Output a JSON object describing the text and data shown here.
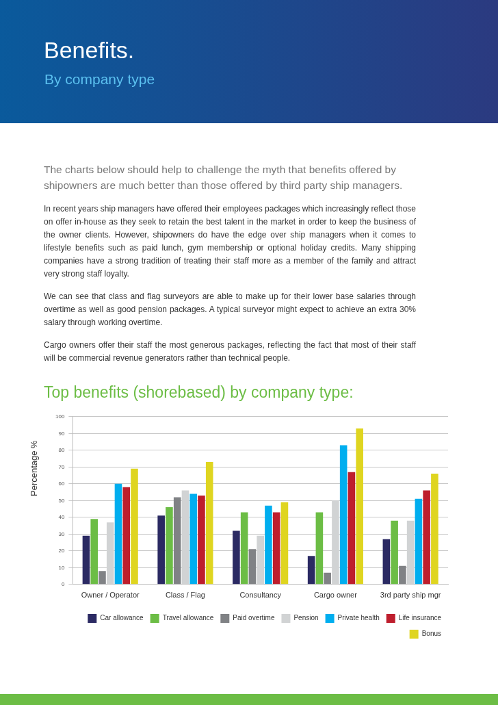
{
  "chart_data": {
    "type": "bar",
    "title": "Top benefits (shorebased) by company type:",
    "ylabel": "Percentage %",
    "annotations": [
      "Benefits.",
      "By company type",
      "The charts below should help to challenge the myth that benefits offered by shipowners are much better than those offered by third party ship managers.",
      "In recent years ship managers have offered their employees packages which increasingly reflect those on offer in-house as they seek to retain the best talent in the market in order to keep the business of the owner clients. However, shipowners do have the edge over ship managers when it comes to lifestyle benefits such as paid lunch, gym membership or optional holiday credits. Many shipping companies have a strong tradition of treating their staff more as a member of the family and attract very strong staff loyalty.",
      "We can see that class and flag surveyors are able to make up for their lower base salaries through overtime as well as good pension packages. A typical surveyor might expect to achieve an extra 30% salary through working overtime.",
      "Cargo owners offer their staff the most generous packages, reflecting the fact that most of their staff will be commercial revenue generators rather than technical people."
    ],
    "categories": [
      "Owner / Operator",
      "Class / Flag",
      "Consultancy",
      "Cargo owner",
      "3rd party ship mgr"
    ],
    "series": [
      {
        "name": "Car allowance",
        "color": "#2b2a63",
        "values": [
          29,
          41,
          32,
          17,
          27
        ]
      },
      {
        "name": "Travel allowance",
        "color": "#6cbd45",
        "values": [
          39,
          46,
          43,
          43,
          38
        ]
      },
      {
        "name": "Paid overtime",
        "color": "#808285",
        "values": [
          8,
          52,
          21,
          7,
          11
        ]
      },
      {
        "name": "Pension",
        "color": "#d1d3d4",
        "values": [
          37,
          56,
          29,
          50,
          38
        ]
      },
      {
        "name": "Private health",
        "color": "#00aeef",
        "values": [
          60,
          54,
          47,
          83,
          51
        ]
      },
      {
        "name": "Life insurance",
        "color": "#be1e2d",
        "values": [
          58,
          53,
          43,
          67,
          56
        ]
      },
      {
        "name": "Bonus",
        "color": "#dfd520",
        "values": [
          69,
          73,
          49,
          93,
          66
        ]
      }
    ],
    "ylim": [
      0,
      100
    ],
    "yticks": [
      0,
      10,
      20,
      30,
      40,
      50,
      60,
      70,
      80,
      90,
      100
    ],
    "grid": "y",
    "legend": "bottom right"
  }
}
